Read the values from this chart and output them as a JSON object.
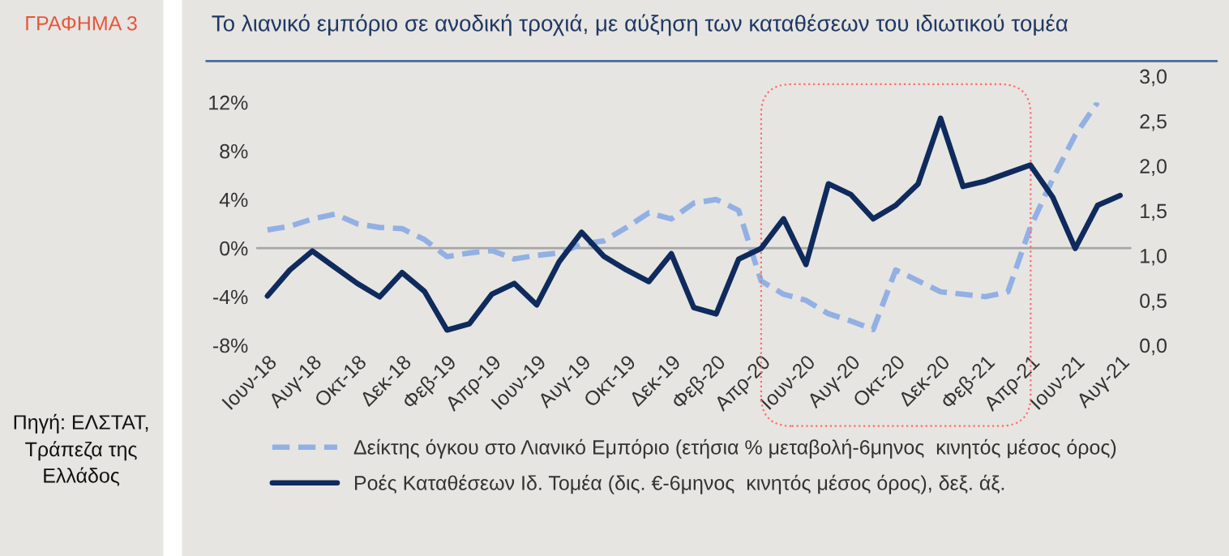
{
  "chart_data": {
    "type": "line",
    "title": "Το λιανικό εμπόριο σε ανοδική τροχιά, με αύξηση των καταθέσεων του ιδιωτικού τομέα",
    "annotations": [
      "ΓΡΑΦΗΜΑ 3",
      "Πηγή: ΕΛΣΤΑΤ, Τράπεζα της Ελλάδος"
    ],
    "categories": [
      "Ιουν-18",
      null,
      "Αυγ-18",
      null,
      "Οκτ-18",
      null,
      "Δεκ-18",
      null,
      "Φεβ-19",
      null,
      "Απρ-19",
      null,
      "Ιουν-19",
      null,
      "Αυγ-19",
      null,
      "Οκτ-19",
      null,
      "Δεκ-19",
      null,
      "Φεβ-20",
      null,
      "Απρ-20",
      null,
      "Ιουν-20",
      null,
      "Αυγ-20",
      null,
      "Οκτ-20",
      null,
      "Δεκ-20",
      null,
      "Φεβ-21",
      null,
      "Απρ-21",
      null,
      "Ιουν-21",
      null,
      "Αυγ-21"
    ],
    "series": [
      {
        "name": "Δείκτης όγκου στο Λιανικό Εμπόριο (ετήσια % μεταβολή-6μηνος  κινητός μέσος όρος)",
        "color": "#92b0e4",
        "line_style": "dashed",
        "values": [
          1.5,
          1.8,
          2.4,
          2.8,
          2.0,
          1.7,
          1.6,
          0.7,
          -0.7,
          -0.4,
          -0.2,
          -0.9,
          -0.6,
          -0.4,
          0.3,
          0.6,
          1.7,
          2.9,
          2.4,
          3.7,
          4.0,
          3.1,
          -2.7,
          -3.8,
          -4.3,
          -5.4,
          -6.0,
          -6.7,
          -1.8,
          -2.7,
          -3.6,
          -3.8,
          -4.0,
          -3.6,
          1.7,
          5.7,
          9.3,
          12.0,
          null
        ]
      },
      {
        "name": "Ροές Καταθέσεων Ιδ. Τομέα (δις. €-6μηνος  κινητός μέσος όρος), δεξ. άξ.",
        "color": "#0f2a5c",
        "line_style": "solid",
        "axis": "y2",
        "values": [
          0.55,
          0.84,
          1.05,
          0.87,
          0.69,
          0.54,
          0.81,
          0.6,
          0.17,
          0.24,
          0.57,
          0.69,
          0.45,
          0.93,
          1.26,
          0.99,
          0.84,
          0.71,
          1.02,
          0.42,
          0.35,
          0.96,
          1.08,
          1.41,
          0.9,
          1.8,
          1.68,
          1.41,
          1.56,
          1.8,
          2.53,
          1.77,
          1.83,
          1.92,
          2.01,
          1.65,
          1.08,
          1.56,
          1.67
        ]
      }
    ],
    "ylim": [
      -8,
      12
    ],
    "yticks": [
      {
        "value": -8,
        "label": "-8%"
      },
      {
        "value": -4,
        "label": "-4%"
      },
      {
        "value": 0,
        "label": "0%"
      },
      {
        "value": 4,
        "label": "4%"
      },
      {
        "value": 8,
        "label": "8%"
      },
      {
        "value": 12,
        "label": "12%"
      }
    ],
    "y2lim": [
      0,
      3
    ],
    "y2ticks": [
      {
        "value": 0,
        "label": "0,0"
      },
      {
        "value": 0.5,
        "label": "0,5"
      },
      {
        "value": 1,
        "label": "1,0"
      },
      {
        "value": 1.5,
        "label": "1,5"
      },
      {
        "value": 2,
        "label": "2,0"
      },
      {
        "value": 2.5,
        "label": "2,5"
      },
      {
        "value": 3,
        "label": "3,0"
      }
    ],
    "ref_lines": [
      {
        "axis": "y",
        "value": 0,
        "label": null,
        "color": "#a6a6a6"
      }
    ],
    "grid": false,
    "legend": "bottom"
  }
}
